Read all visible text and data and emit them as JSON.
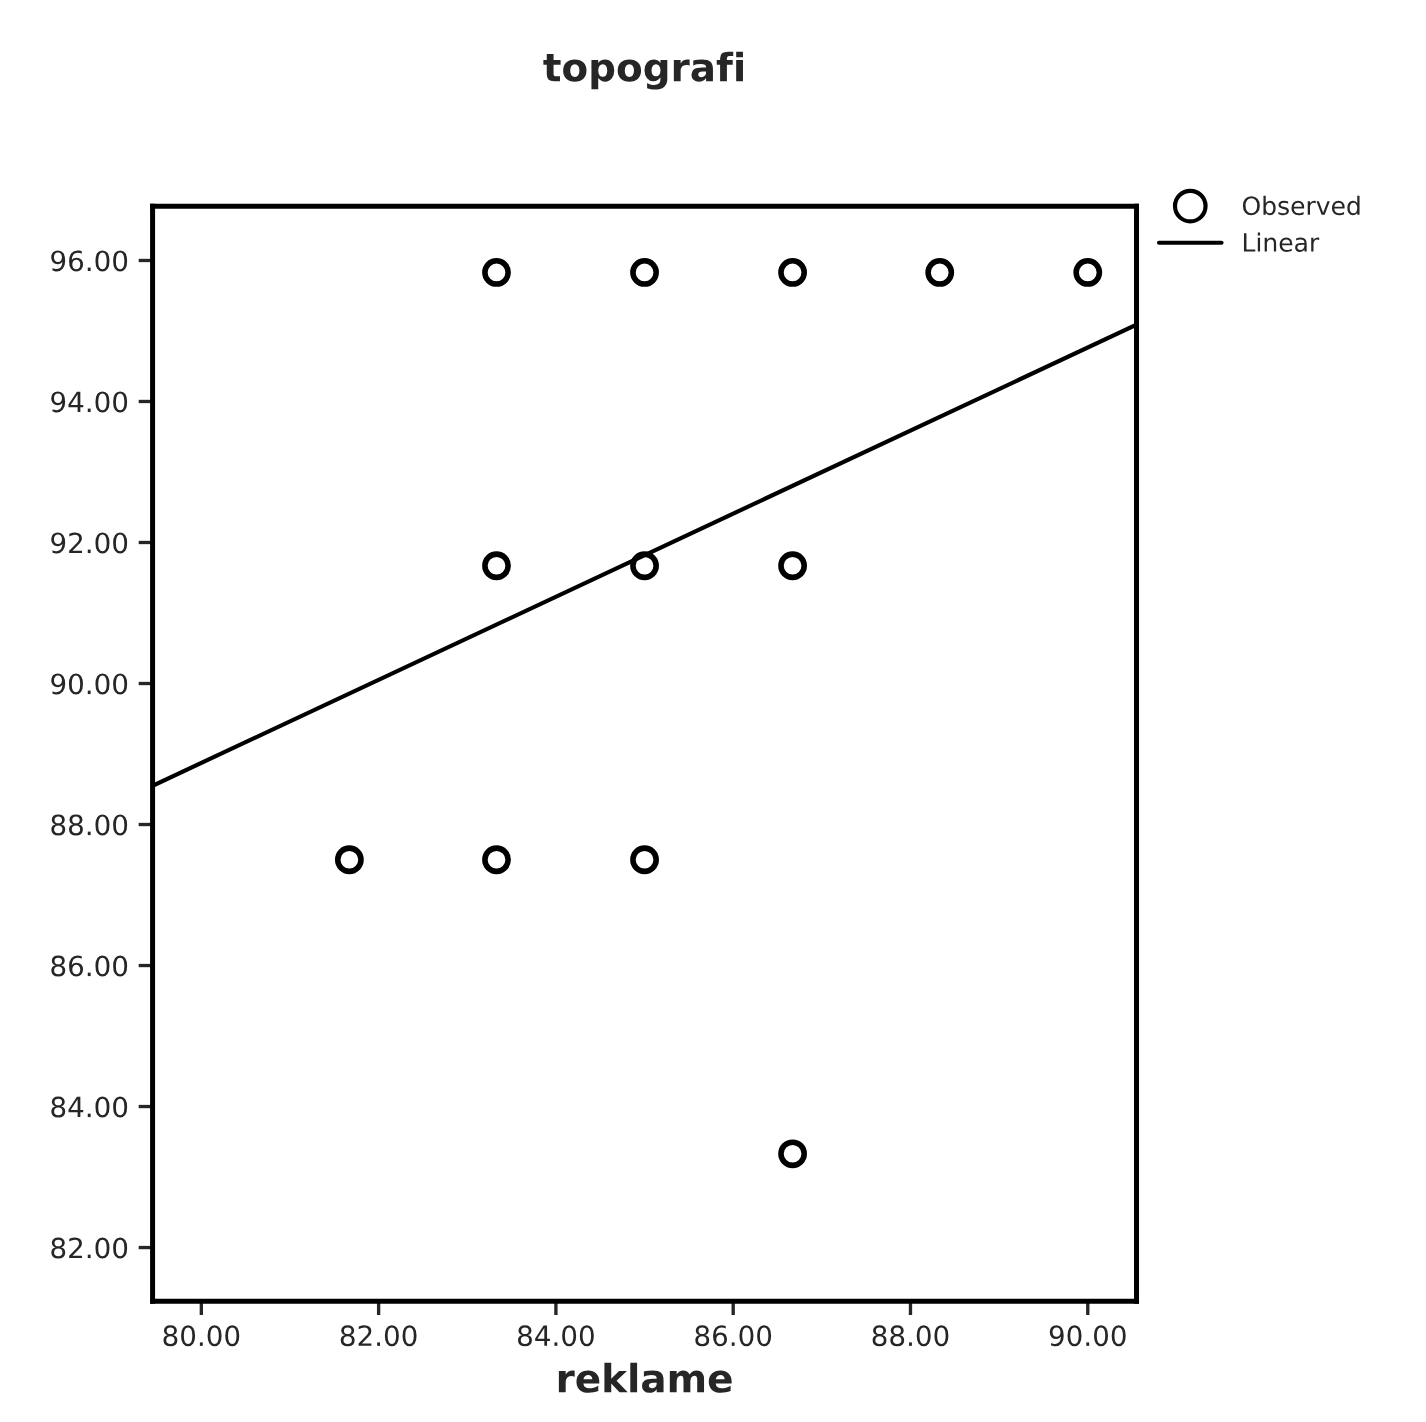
{
  "chart_data": {
    "type": "scatter",
    "title": "topografi",
    "xlabel": "reklame",
    "series": [
      {
        "name": "Observed",
        "marker": "circle",
        "color": "#000000",
        "x": [
          81.67,
          83.33,
          85.0,
          86.67,
          88.33,
          90.0,
          83.33,
          85.0,
          86.67,
          83.33,
          85.0,
          86.67
        ],
        "values": [
          87.5,
          95.83,
          95.83,
          95.83,
          95.83,
          95.83,
          91.67,
          91.67,
          91.67,
          87.5,
          87.5,
          83.33
        ]
      },
      {
        "name": "Linear",
        "type": "line",
        "color": "#000000",
        "x": [
          79.45,
          90.55
        ],
        "values": [
          88.55,
          95.09
        ]
      }
    ],
    "xlim": [
      79.45,
      90.55
    ],
    "ylim": [
      81.24,
      96.77
    ],
    "xticks": [
      {
        "value": 80,
        "label": "80.00"
      },
      {
        "value": 82,
        "label": "82.00"
      },
      {
        "value": 84,
        "label": "84.00"
      },
      {
        "value": 86,
        "label": "86.00"
      },
      {
        "value": 88,
        "label": "88.00"
      },
      {
        "value": 90,
        "label": "90.00"
      }
    ],
    "yticks": [
      {
        "value": 82,
        "label": "82.00"
      },
      {
        "value": 84,
        "label": "84.00"
      },
      {
        "value": 86,
        "label": "86.00"
      },
      {
        "value": 88,
        "label": "88.00"
      },
      {
        "value": 90,
        "label": "90.00"
      },
      {
        "value": 92,
        "label": "92.00"
      },
      {
        "value": 94,
        "label": "94.00"
      },
      {
        "value": 96,
        "label": "96.00"
      }
    ],
    "grid": false,
    "legend": "top right"
  }
}
